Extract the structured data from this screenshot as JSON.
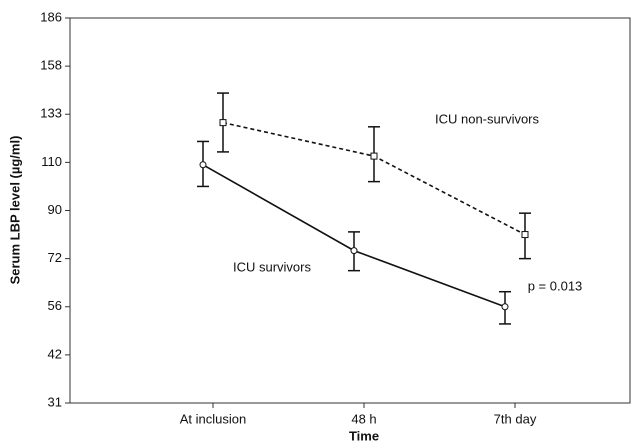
{
  "chart_data": {
    "type": "line",
    "x_label": "Time",
    "y_label": "Serum LBP level (µg/ml)",
    "categories": [
      "At inclusion",
      "48 h",
      "7th day"
    ],
    "ylim": [
      31,
      186
    ],
    "yticks": [
      31,
      42,
      56,
      72,
      90,
      110,
      133,
      158,
      186
    ],
    "series": [
      {
        "name": "ICU survivors",
        "color": "#111111",
        "line_style": "solid",
        "marker": "circle",
        "values": [
          109,
          75,
          56
        ],
        "upper": [
          120,
          82,
          61
        ],
        "lower": [
          100,
          68,
          51
        ]
      },
      {
        "name": "ICU non-survivors",
        "color": "#111111",
        "line_style": "dashed",
        "marker": "square",
        "values": [
          129,
          113,
          81
        ],
        "upper": [
          144,
          127,
          89
        ],
        "lower": [
          115,
          102,
          72
        ]
      }
    ],
    "annotations": [
      "p = 0.013"
    ]
  }
}
